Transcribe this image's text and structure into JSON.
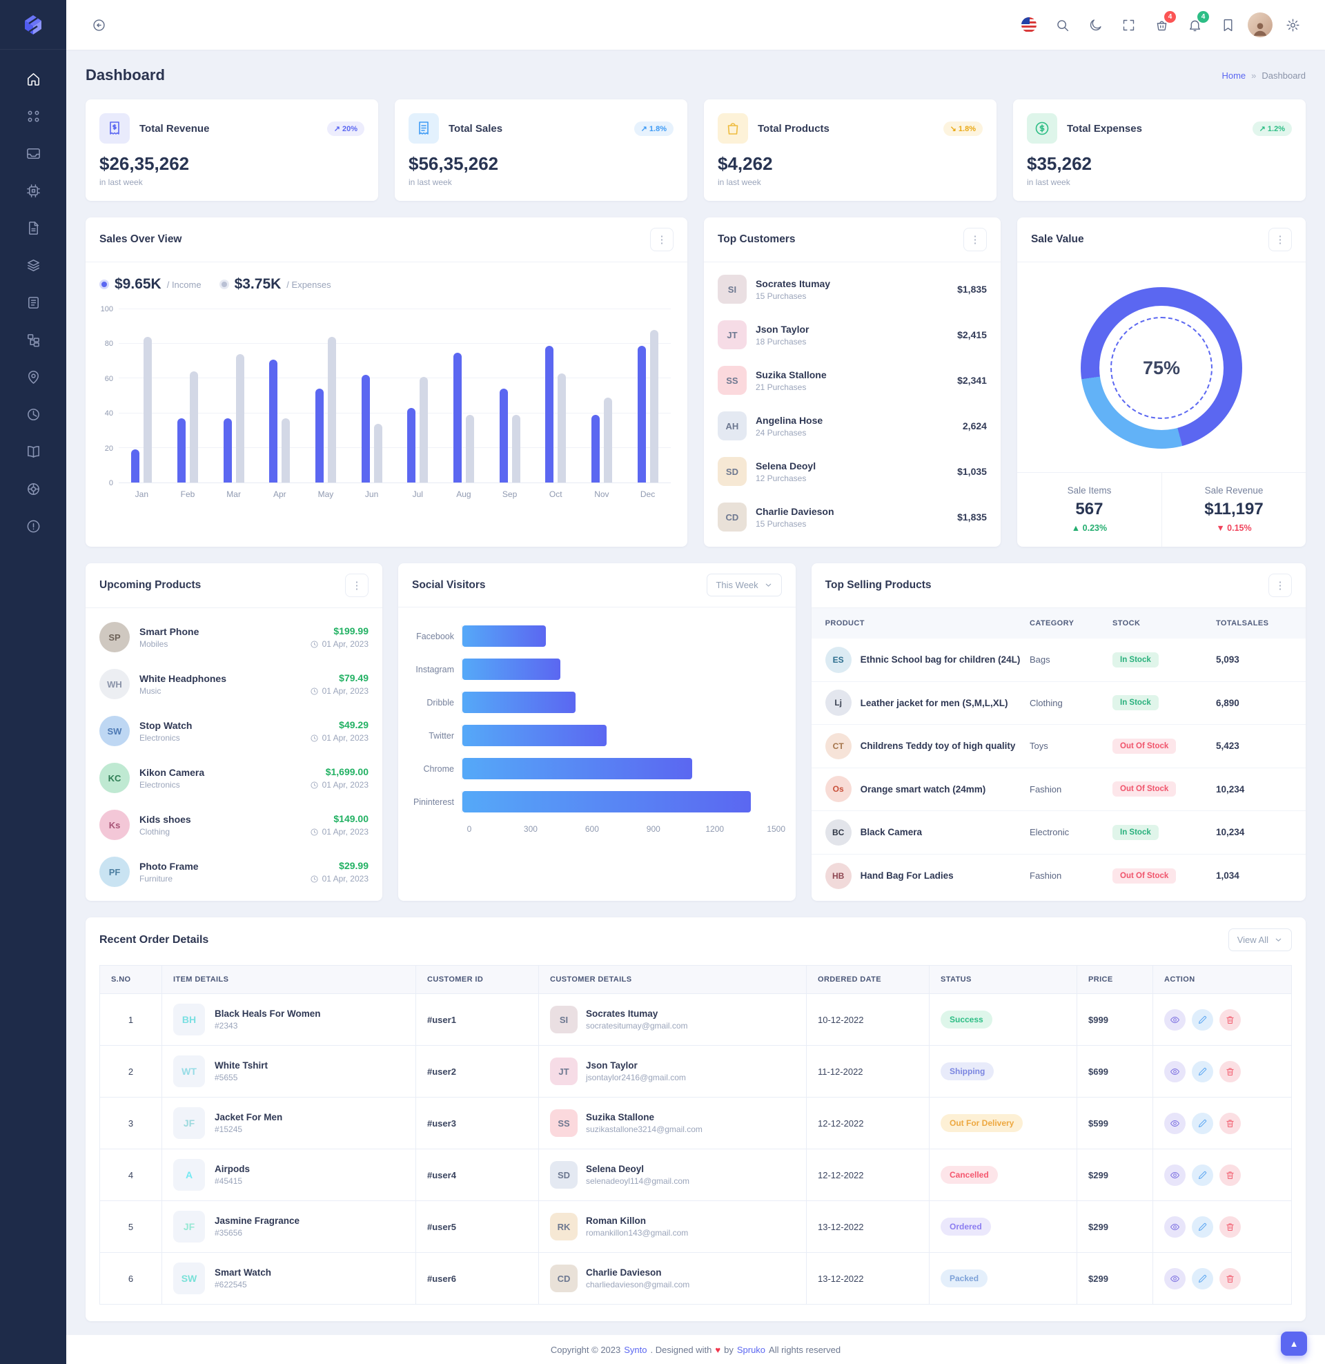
{
  "sidebar": {
    "logo_icon": "synto-logo",
    "items": [
      {
        "icon": "home-icon",
        "active": true
      },
      {
        "icon": "apps-icon"
      },
      {
        "icon": "inbox-icon"
      },
      {
        "icon": "cpu-icon"
      },
      {
        "icon": "file-icon"
      },
      {
        "icon": "layers-icon"
      },
      {
        "icon": "news-icon"
      },
      {
        "icon": "sitemap-icon"
      },
      {
        "icon": "map-pin-icon"
      },
      {
        "icon": "time-icon"
      },
      {
        "icon": "book-icon"
      },
      {
        "icon": "wheel-icon"
      },
      {
        "icon": "info-icon"
      }
    ]
  },
  "header": {
    "tools": [
      {
        "icon": "flag-us-icon"
      },
      {
        "icon": "search-icon"
      },
      {
        "icon": "moon-icon"
      },
      {
        "icon": "fullscreen-icon"
      },
      {
        "icon": "cart-icon",
        "badge": "4",
        "badge_color": "#fb5454"
      },
      {
        "icon": "bell-icon",
        "badge": "4",
        "badge_color": "#2dbd85"
      },
      {
        "icon": "bookmark-icon"
      },
      {
        "icon": "avatar"
      },
      {
        "icon": "gear-icon"
      }
    ]
  },
  "page": {
    "title": "Dashboard",
    "breadcrumb_home": "Home",
    "breadcrumb_sep": "»",
    "breadcrumb_current": "Dashboard"
  },
  "stats": [
    {
      "title": "Total Revenue",
      "badge": "↗ 20%",
      "value": "$26,35,262",
      "note": "in last week",
      "icon": "receipt-dollar-icon",
      "ico_bg": "#e9ebfc",
      "ico_fg": "#5b67f1",
      "badge_bg": "#ededfd",
      "badge_fg": "#5b67f1"
    },
    {
      "title": "Total Sales",
      "badge": "↗ 1.8%",
      "value": "$56,35,262",
      "note": "in last week",
      "icon": "receipt-icon",
      "ico_bg": "#e3f1fd",
      "ico_fg": "#3f9bf5",
      "badge_bg": "#e7f2fd",
      "badge_fg": "#3f9bf5"
    },
    {
      "title": "Total Products",
      "badge": "↘ 1.8%",
      "value": "$4,262",
      "note": "in last week",
      "icon": "shopping-bag-icon",
      "ico_bg": "#fdf2d8",
      "ico_fg": "#eebb3e",
      "badge_bg": "#fdf4df",
      "badge_fg": "#eaa916"
    },
    {
      "title": "Total Expenses",
      "badge": "↗ 1.2%",
      "value": "$35,262",
      "note": "in last week",
      "icon": "dollar-circle-icon",
      "ico_bg": "#def5ea",
      "ico_fg": "#2dbd85",
      "badge_bg": "#e2f6ed",
      "badge_fg": "#2dbd85"
    }
  ],
  "sales_overview": {
    "title": "Sales Over View",
    "income_value": "$9.65K",
    "income_label": "/ Income",
    "expenses_value": "$3.75K",
    "expenses_label": "/ Expenses",
    "chart_data": {
      "type": "bar",
      "categories": [
        "Jan",
        "Feb",
        "Mar",
        "Apr",
        "May",
        "Jun",
        "Jul",
        "Aug",
        "Sep",
        "Oct",
        "Nov",
        "Dec"
      ],
      "series": [
        {
          "name": "Income",
          "color": "#5b67f1",
          "values": [
            19,
            37,
            37,
            71,
            54,
            62,
            43,
            75,
            54,
            79,
            39,
            79
          ]
        },
        {
          "name": "Expenses",
          "color": "#d3d8e6",
          "values": [
            84,
            64,
            74,
            37,
            84,
            34,
            61,
            39,
            39,
            63,
            49,
            88
          ]
        }
      ],
      "ylim": [
        0,
        100
      ],
      "yticks": [
        0,
        20,
        40,
        60,
        80,
        100
      ],
      "grid": true,
      "legend_position": "top-left"
    }
  },
  "top_customers": {
    "title": "Top Customers",
    "items": [
      {
        "name": "Socrates Itumay",
        "sub": "15 Purchases",
        "amount": "$1,835"
      },
      {
        "name": "Json Taylor",
        "sub": "18 Purchases",
        "amount": "$2,415"
      },
      {
        "name": "Suzika Stallone",
        "sub": "21 Purchases",
        "amount": "$2,341"
      },
      {
        "name": "Angelina Hose",
        "sub": "24 Purchases",
        "amount": "2,624"
      },
      {
        "name": "Selena Deoyl",
        "sub": "12 Purchases",
        "amount": "$1,035"
      },
      {
        "name": "Charlie Davieson",
        "sub": "15 Purchases",
        "amount": "$1,835"
      }
    ]
  },
  "sale_value": {
    "title": "Sale Value",
    "center_percent": "75%",
    "chart_data": {
      "type": "pie",
      "labels": [
        "Primary",
        "Secondary"
      ],
      "values": [
        75,
        25
      ],
      "colors": [
        "#5b67f1",
        "#62b2f7"
      ]
    },
    "stats": [
      {
        "label": "Sale Items",
        "value": "567",
        "delta": "▲ 0.23%",
        "dir": "up"
      },
      {
        "label": "Sale Revenue",
        "value": "$11,197",
        "delta": "▼ 0.15%",
        "dir": "down"
      }
    ]
  },
  "upcoming_products": {
    "title": "Upcoming Products",
    "items": [
      {
        "name": "Smart Phone",
        "category": "Mobiles",
        "price": "$199.99",
        "date": "01 Apr, 2023",
        "thumb_bg": "#cfc8c0",
        "thumb_fg": "#6d6258"
      },
      {
        "name": "White Headphones",
        "category": "Music",
        "price": "$79.49",
        "date": "01 Apr, 2023",
        "thumb_bg": "#eceef2",
        "thumb_fg": "#8a93a8"
      },
      {
        "name": "Stop Watch",
        "category": "Electronics",
        "price": "$49.29",
        "date": "01 Apr, 2023",
        "thumb_bg": "#bed7f3",
        "thumb_fg": "#4d79b4"
      },
      {
        "name": "Kikon Camera",
        "category": "Electronics",
        "price": "$1,699.00",
        "date": "01 Apr, 2023",
        "thumb_bg": "#bfe9d2",
        "thumb_fg": "#2e7d54"
      },
      {
        "name": "Kids shoes",
        "category": "Clothing",
        "price": "$149.00",
        "date": "01 Apr, 2023",
        "thumb_bg": "#f3c7d7",
        "thumb_fg": "#a85577"
      },
      {
        "name": "Photo Frame",
        "category": "Furniture",
        "price": "$29.99",
        "date": "01 Apr, 2023",
        "thumb_bg": "#c9e3f2",
        "thumb_fg": "#4b7ea0"
      }
    ]
  },
  "social_visitors": {
    "title": "Social Visitors",
    "range_selector": "This Week",
    "chart_data": {
      "type": "bar",
      "orientation": "horizontal",
      "categories": [
        "Facebook",
        "Instagram",
        "Dribble",
        "Twitter",
        "Chrome",
        "Pininterest"
      ],
      "values": [
        400,
        470,
        540,
        690,
        1100,
        1380
      ],
      "xticks": [
        0,
        300,
        600,
        900,
        1200,
        1500
      ],
      "xlim": [
        0,
        1500
      ]
    }
  },
  "top_selling": {
    "title": "Top Selling Products",
    "columns": [
      "PRODUCT",
      "CATEGORY",
      "STOCK",
      "TOTALSALES"
    ],
    "rows": [
      {
        "product": "Ethnic School bag for children (24L)",
        "category": "Bags",
        "stock": "In Stock",
        "stock_state": "instock",
        "sales": "5,093",
        "thumb_bg": "#dcebf3",
        "thumb_fg": "#2c6e8e"
      },
      {
        "product": "Leather jacket for men (S,M,L,XL)",
        "category": "Clothing",
        "stock": "In Stock",
        "stock_state": "instock",
        "sales": "6,890",
        "thumb_bg": "#e3e6ee",
        "thumb_fg": "#3a4152"
      },
      {
        "product": "Childrens Teddy toy of high quality",
        "category": "Toys",
        "stock": "Out Of Stock",
        "stock_state": "outstock",
        "sales": "5,423",
        "thumb_bg": "#f6e3d8",
        "thumb_fg": "#a4744a"
      },
      {
        "product": "Orange smart watch (24mm)",
        "category": "Fashion",
        "stock": "Out Of Stock",
        "stock_state": "outstock",
        "sales": "10,234",
        "thumb_bg": "#f8dcd6",
        "thumb_fg": "#c9503a"
      },
      {
        "product": "Black Camera",
        "category": "Electronic",
        "stock": "In Stock",
        "stock_state": "instock",
        "sales": "10,234",
        "thumb_bg": "#e2e4ea",
        "thumb_fg": "#2f3645"
      },
      {
        "product": "Hand Bag For Ladies",
        "category": "Fashion",
        "stock": "Out Of Stock",
        "stock_state": "outstock",
        "sales": "1,034",
        "thumb_bg": "#f1dada",
        "thumb_fg": "#8e4752"
      }
    ]
  },
  "recent_orders": {
    "title": "Recent Order Details",
    "view_all": "View All",
    "columns": [
      "S.NO",
      "ITEM DETAILS",
      "CUSTOMER ID",
      "CUSTOMER DETAILS",
      "ORDERED DATE",
      "STATUS",
      "PRICE",
      "ACTION"
    ],
    "rows": [
      {
        "sno": "1",
        "item": "Black Heals For Women",
        "item_id": "#2343",
        "cid": "#user1",
        "customer": "Socrates Itumay",
        "email": "socratesitumay@gmail.com",
        "date": "10-12-2022",
        "status": "Success",
        "status_state": "success",
        "price": "$999"
      },
      {
        "sno": "2",
        "item": "White Tshirt",
        "item_id": "#5655",
        "cid": "#user2",
        "customer": "Json Taylor",
        "email": "jsontaylor2416@gmail.com",
        "date": "11-12-2022",
        "status": "Shipping",
        "status_state": "shipping",
        "price": "$699"
      },
      {
        "sno": "3",
        "item": "Jacket For Men",
        "item_id": "#15245",
        "cid": "#user3",
        "customer": "Suzika Stallone",
        "email": "suzikastallone3214@gmail.com",
        "date": "12-12-2022",
        "status": "Out For Delivery",
        "status_state": "outdelivery",
        "price": "$599"
      },
      {
        "sno": "4",
        "item": "Airpods",
        "item_id": "#45415",
        "cid": "#user4",
        "customer": "Selena Deoyl",
        "email": "selenadeoyl114@gmail.com",
        "date": "12-12-2022",
        "status": "Cancelled",
        "status_state": "cancelled",
        "price": "$299"
      },
      {
        "sno": "5",
        "item": "Jasmine Fragrance",
        "item_id": "#35656",
        "cid": "#user5",
        "customer": "Roman Killon",
        "email": "romankillon143@gmail.com",
        "date": "13-12-2022",
        "status": "Ordered",
        "status_state": "ordered",
        "price": "$299"
      },
      {
        "sno": "6",
        "item": "Smart Watch",
        "item_id": "#622545",
        "cid": "#user6",
        "customer": "Charlie Davieson",
        "email": "charliedavieson@gmail.com",
        "date": "13-12-2022",
        "status": "Packed",
        "status_state": "packed",
        "price": "$299"
      }
    ]
  },
  "footer": {
    "prefix": "Copyright © 2023",
    "brand": "Synto",
    "mid": ". Designed with",
    "heart": "♥",
    "by": "by",
    "brand2": "Spruko",
    "suffix": "All rights reserved"
  }
}
